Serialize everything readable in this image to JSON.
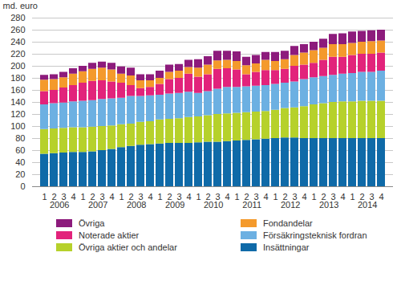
{
  "chart_data": {
    "type": "bar",
    "stacked": true,
    "y_label": "md. euro",
    "categories": [
      "1",
      "2",
      "3",
      "4",
      "1",
      "2",
      "3",
      "4",
      "1",
      "2",
      "3",
      "4",
      "1",
      "2",
      "3",
      "4",
      "1",
      "2",
      "3",
      "4",
      "1",
      "2",
      "3",
      "4",
      "1",
      "2",
      "3",
      "4",
      "1",
      "2",
      "3",
      "4",
      "1",
      "2",
      "3",
      "4"
    ],
    "years": [
      "2006",
      "2007",
      "2008",
      "2009",
      "2010",
      "2011",
      "2012",
      "2013",
      "2014"
    ],
    "ylim": [
      0,
      280
    ],
    "yticks": [
      0,
      20,
      40,
      60,
      80,
      100,
      120,
      140,
      160,
      180,
      200,
      220,
      240,
      260,
      280
    ],
    "grid": true,
    "legend": "bottom",
    "series": [
      {
        "name": "Insättningar",
        "color": "#0f6aa8",
        "values": [
          54,
          55,
          56,
          57,
          57,
          58,
          60,
          62,
          65,
          67,
          69,
          70,
          71,
          72,
          72,
          72,
          73,
          74,
          74,
          75,
          76,
          77,
          78,
          79,
          80,
          81,
          81,
          80,
          80,
          80,
          80,
          80,
          80,
          80,
          80,
          80
        ]
      },
      {
        "name": "Övriga aktier och andelar",
        "color": "#b6d12b",
        "values": [
          41,
          41,
          41,
          41,
          41,
          41,
          40,
          39,
          38,
          37,
          38,
          38,
          40,
          40,
          41,
          43,
          43,
          44,
          46,
          46,
          46,
          46,
          46,
          46,
          47,
          49,
          50,
          53,
          56,
          58,
          60,
          61,
          61,
          62,
          62,
          62
        ]
      },
      {
        "name": "Försäkringsteknisk fordran",
        "color": "#6cb0e2",
        "values": [
          41,
          42,
          42,
          43,
          44,
          44,
          45,
          45,
          44,
          46,
          43,
          43,
          41,
          42,
          42,
          42,
          39,
          40,
          42,
          44,
          43,
          43,
          43,
          43,
          43,
          42,
          43,
          45,
          45,
          45,
          45,
          46,
          47,
          48,
          48,
          50
        ]
      },
      {
        "name": "Noterade aktier",
        "color": "#e2237b",
        "values": [
          22,
          22,
          25,
          27,
          30,
          32,
          31,
          28,
          25,
          18,
          13,
          14,
          18,
          24,
          25,
          30,
          27,
          28,
          33,
          31,
          29,
          20,
          23,
          25,
          23,
          23,
          26,
          24,
          24,
          27,
          30,
          28,
          30,
          30,
          30,
          30
        ]
      },
      {
        "name": "Fondandelar",
        "color": "#f49a2c",
        "values": [
          19,
          18,
          17,
          19,
          19,
          20,
          21,
          20,
          15,
          16,
          13,
          11,
          10,
          12,
          12,
          11,
          15,
          16,
          14,
          14,
          14,
          15,
          14,
          17,
          15,
          16,
          18,
          20,
          21,
          20,
          21,
          21,
          20,
          20,
          21,
          20
        ]
      },
      {
        "name": "Övriga",
        "color": "#8d1b7c",
        "values": [
          8,
          8,
          9,
          9,
          9,
          10,
          10,
          11,
          12,
          13,
          10,
          10,
          12,
          12,
          11,
          12,
          14,
          14,
          16,
          15,
          16,
          14,
          14,
          13,
          15,
          14,
          15,
          14,
          14,
          15,
          17,
          18,
          19,
          18,
          18,
          18
        ]
      }
    ]
  }
}
